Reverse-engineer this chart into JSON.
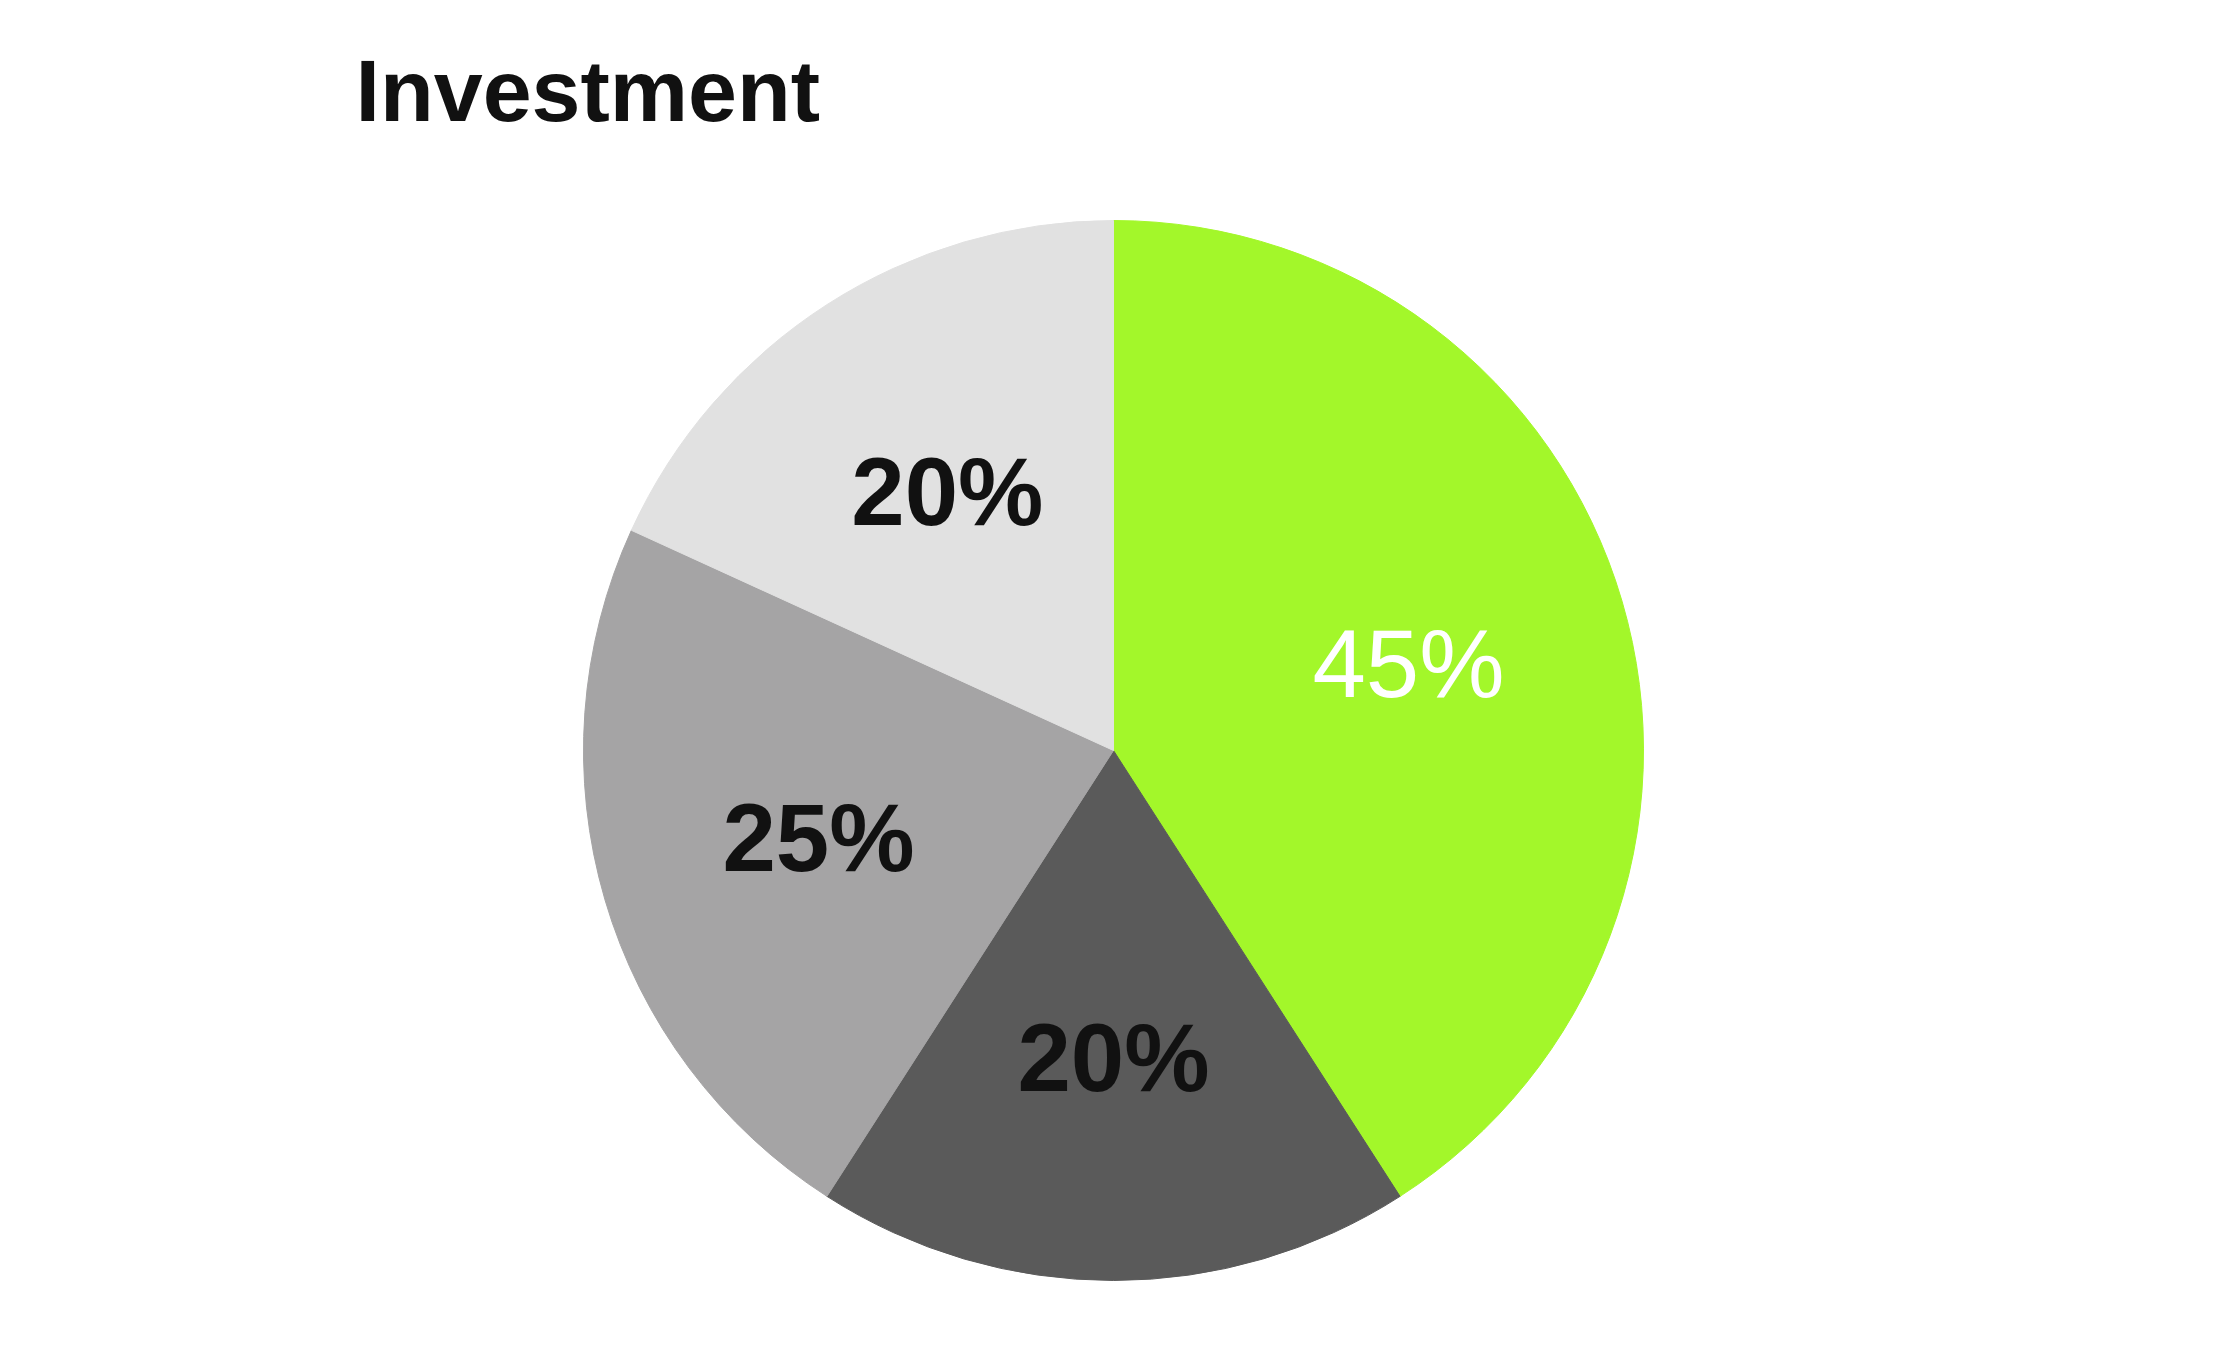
{
  "chart_data": {
    "type": "pie",
    "title": "Investment",
    "categories": [
      null,
      null,
      null,
      null
    ],
    "values": [
      45,
      20,
      25,
      20
    ],
    "colors": [
      "#a3f72a",
      "#5a5a5a",
      "#a5a4a5",
      "#e1e1e1"
    ],
    "value_labels": [
      "45%",
      "20%",
      "25%",
      "20%"
    ]
  }
}
